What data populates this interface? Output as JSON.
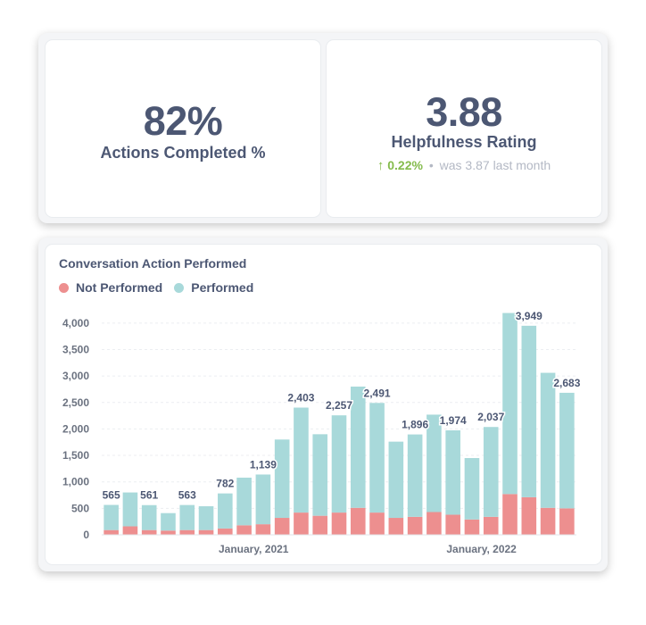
{
  "scalar_card": {
    "value": "82%",
    "label": "Actions Completed %"
  },
  "smart_scalar_card": {
    "value": "3.88",
    "label": "Helpfulness Rating",
    "change_arrow": "↑",
    "change_pct": "0.22%",
    "separator": "•",
    "previous_text": "was 3.87",
    "period_text": "last month",
    "colors": {
      "positive": "#84bb4c",
      "muted": "#b3b8c4"
    }
  },
  "legend": {
    "not_performed": "Not Performed",
    "performed": "Performed"
  },
  "chart_data": {
    "type": "bar",
    "stacked": true,
    "title": "Conversation Action Performed",
    "xlabel": "",
    "ylabel": "",
    "ylim": [
      0,
      4250
    ],
    "yticks": [
      0,
      500,
      1000,
      1500,
      2000,
      2500,
      3000,
      3500,
      4000
    ],
    "ytick_labels": [
      "0",
      "500",
      "1,000",
      "1,500",
      "2,000",
      "2,500",
      "3,000",
      "3,500",
      "4,000"
    ],
    "xtick_labels": [
      {
        "label": "January, 2021",
        "index": 7.5
      },
      {
        "label": "January, 2022",
        "index": 19.5
      }
    ],
    "grid": true,
    "legend_position": "top-left",
    "series": [
      {
        "name": "Not Performed",
        "color": "#ed8f8f",
        "values": [
          90,
          160,
          90,
          80,
          90,
          90,
          120,
          180,
          200,
          320,
          420,
          360,
          420,
          510,
          420,
          320,
          340,
          430,
          380,
          290,
          340,
          770,
          710,
          510,
          500
        ]
      },
      {
        "name": "Performed",
        "color": "#a8d9da",
        "values": [
          475,
          640,
          471,
          330,
          473,
          450,
          662,
          900,
          939,
          1480,
          1983,
          1540,
          1837,
          2290,
          2071,
          1440,
          1556,
          1840,
          1594,
          1160,
          1697,
          3420,
          3239,
          2550,
          2183
        ]
      }
    ],
    "data_labels": [
      {
        "index": 0,
        "text": "565"
      },
      {
        "index": 2,
        "text": "561"
      },
      {
        "index": 4,
        "text": "563"
      },
      {
        "index": 6,
        "text": "782"
      },
      {
        "index": 8,
        "text": "1,139"
      },
      {
        "index": 10,
        "text": "2,403"
      },
      {
        "index": 12,
        "text": "2,257"
      },
      {
        "index": 14,
        "text": "2,491"
      },
      {
        "index": 16,
        "text": "1,896"
      },
      {
        "index": 18,
        "text": "1,974"
      },
      {
        "index": 20,
        "text": "2,037"
      },
      {
        "index": 22,
        "text": "3,949"
      },
      {
        "index": 24,
        "text": "2,683"
      }
    ]
  }
}
